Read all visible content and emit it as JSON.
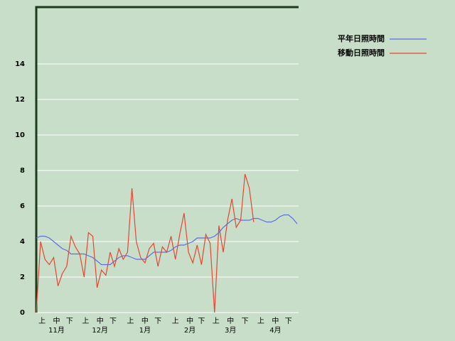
{
  "chart_data": {
    "type": "line",
    "x": [
      0,
      3,
      6,
      9,
      12,
      15,
      18,
      21,
      24,
      27,
      30,
      33,
      36,
      39,
      42,
      45,
      48,
      51,
      54,
      57,
      60,
      63,
      66,
      69,
      72,
      75,
      78,
      81,
      84,
      87,
      90,
      93,
      96,
      99,
      102,
      105,
      108,
      111,
      114,
      117,
      120,
      123,
      126,
      129,
      132,
      135,
      138,
      141,
      144,
      147,
      150,
      153,
      156,
      159,
      162,
      165,
      168,
      171,
      174,
      177,
      180
    ],
    "xlim": [
      0,
      181
    ],
    "xticks": [
      {
        "value": 4,
        "label": "上"
      },
      {
        "value": 14,
        "label": "中"
      },
      {
        "value": 23,
        "label": "下"
      },
      {
        "value": 34,
        "label": "上"
      },
      {
        "value": 44,
        "label": "中"
      },
      {
        "value": 53,
        "label": "下"
      },
      {
        "value": 65,
        "label": "上"
      },
      {
        "value": 75,
        "label": "中"
      },
      {
        "value": 84,
        "label": "下"
      },
      {
        "value": 96,
        "label": "上"
      },
      {
        "value": 106,
        "label": "中"
      },
      {
        "value": 114,
        "label": "下"
      },
      {
        "value": 124,
        "label": "上"
      },
      {
        "value": 134,
        "label": "中"
      },
      {
        "value": 144,
        "label": "下"
      },
      {
        "value": 155,
        "label": "上"
      },
      {
        "value": 165,
        "label": "中"
      },
      {
        "value": 174,
        "label": "下"
      }
    ],
    "xgroups": [
      {
        "value": 14,
        "label": "11月"
      },
      {
        "value": 44,
        "label": "12月"
      },
      {
        "value": 75,
        "label": "1月"
      },
      {
        "value": 106,
        "label": "2月"
      },
      {
        "value": 134,
        "label": "3月"
      },
      {
        "value": 165,
        "label": "4月"
      }
    ],
    "ylim": [
      0,
      17.2
    ],
    "yticks": [
      0,
      2,
      4,
      6,
      8,
      10,
      12,
      14
    ],
    "grid": true,
    "series": [
      {
        "name": "平年日照時間",
        "color": "#5a6ee6",
        "values": [
          4.2,
          4.3,
          4.3,
          4.2,
          4.0,
          3.8,
          3.6,
          3.5,
          3.3,
          3.3,
          3.3,
          3.3,
          3.2,
          3.1,
          2.9,
          2.7,
          2.7,
          2.7,
          2.9,
          3.1,
          3.2,
          3.2,
          3.1,
          3.0,
          3.0,
          3.0,
          3.2,
          3.4,
          3.4,
          3.4,
          3.4,
          3.5,
          3.7,
          3.8,
          3.8,
          3.9,
          4.0,
          4.2,
          4.2,
          4.2,
          4.2,
          4.3,
          4.5,
          4.8,
          5.0,
          5.2,
          5.3,
          5.2,
          5.2,
          5.2,
          5.3,
          5.3,
          5.2,
          5.1,
          5.1,
          5.2,
          5.4,
          5.5,
          5.5,
          5.3,
          5.0
        ]
      },
      {
        "name": "移動日照時間",
        "color": "#e64632",
        "values": [
          0,
          4.0,
          3.0,
          2.7,
          3.1,
          1.5,
          2.2,
          2.6,
          4.3,
          3.7,
          3.3,
          2.0,
          4.5,
          4.3,
          1.4,
          2.4,
          2.1,
          3.4,
          2.6,
          3.6,
          3.0,
          3.4,
          7.0,
          4.0,
          3.1,
          2.8,
          3.6,
          3.9,
          2.6,
          3.7,
          3.4,
          4.3,
          3.0,
          4.4,
          5.6,
          3.4,
          2.8,
          3.8,
          2.7,
          4.4,
          3.9,
          0,
          4.9,
          3.4,
          5.2,
          6.4,
          4.8,
          5.2,
          7.8,
          7.0,
          5.1,
          null,
          null,
          null,
          null,
          null,
          null,
          null,
          null,
          null,
          null
        ]
      }
    ]
  }
}
